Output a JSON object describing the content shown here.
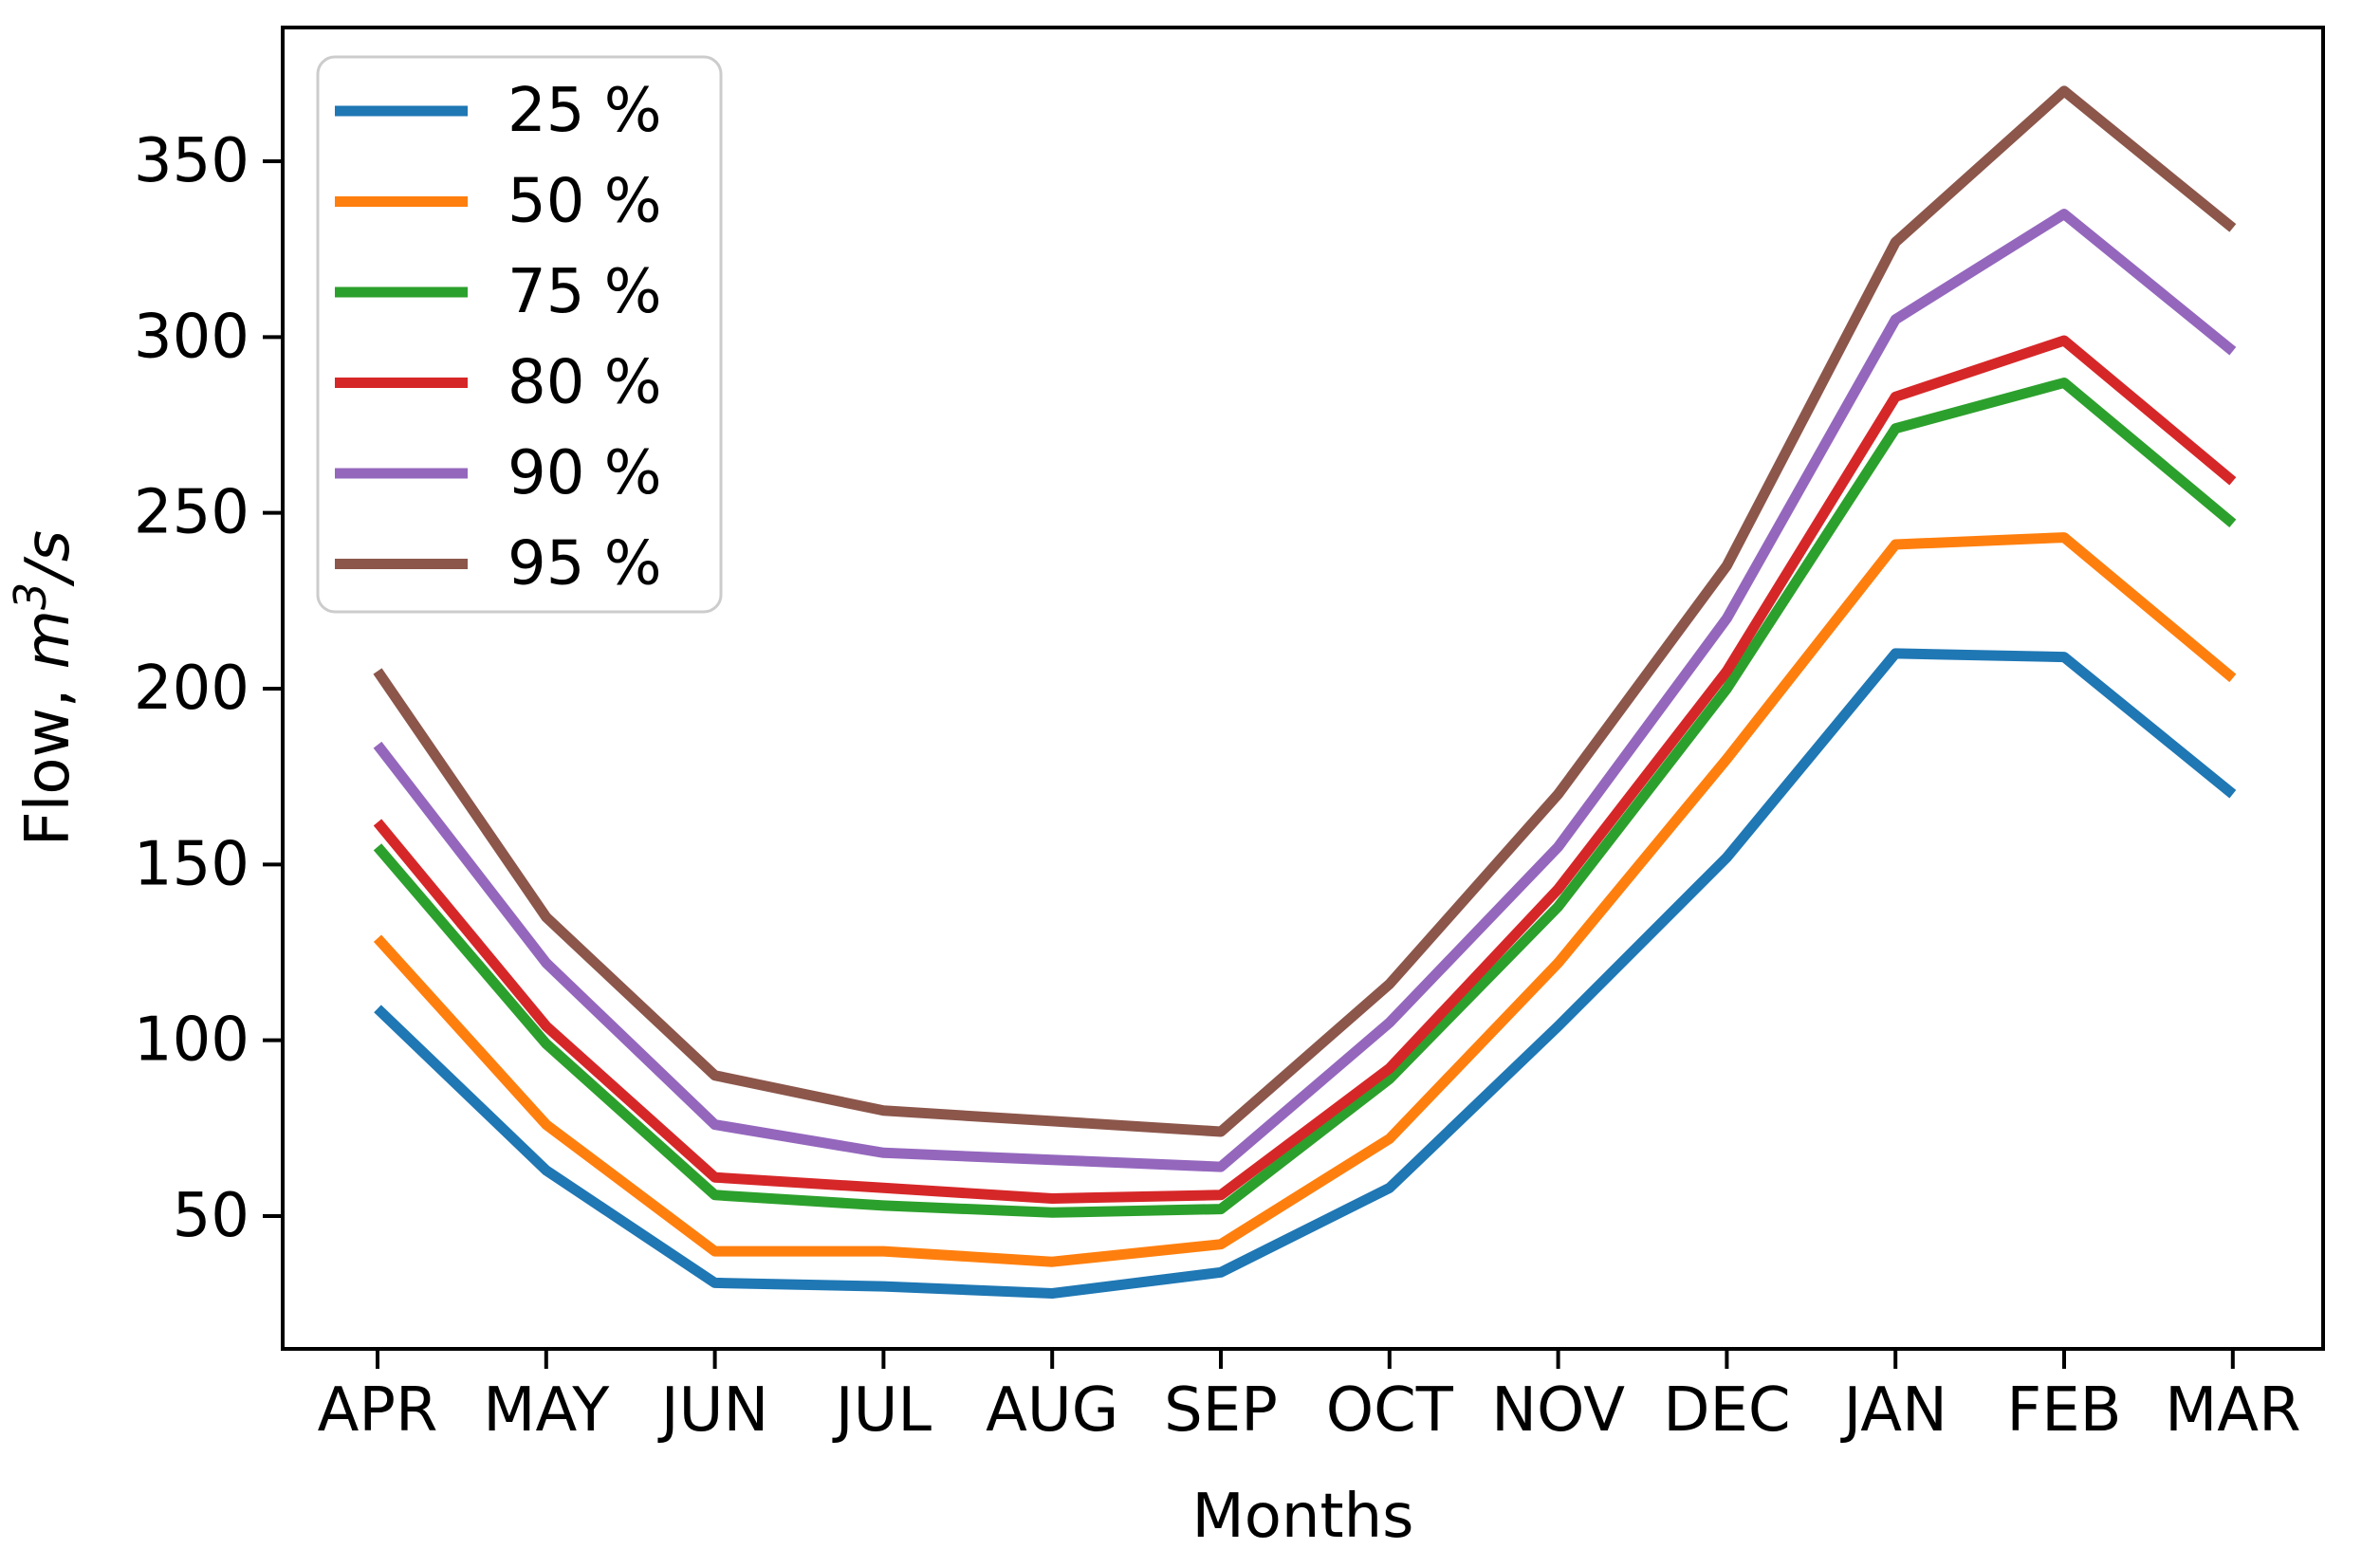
{
  "chart_data": {
    "type": "line",
    "title": "",
    "xlabel": "Months",
    "ylabel": "Flow, m³/s",
    "ylabel_parts": {
      "prefix": "Flow, ",
      "var": "m",
      "sup": "3",
      "unit": "/s"
    },
    "categories": [
      "APR",
      "MAY",
      "JUN",
      "JUL",
      "AUG",
      "SEP",
      "OCT",
      "NOV",
      "DEC",
      "JAN",
      "FEB",
      "MAR"
    ],
    "yticks": [
      50,
      100,
      150,
      200,
      250,
      300,
      350
    ],
    "ylim": [
      11,
      388
    ],
    "grid": false,
    "legend_position": "upper left",
    "series": [
      {
        "name": "25 %",
        "color": "#1f77b4",
        "values": [
          109,
          63,
          31,
          30,
          28,
          34,
          58,
          104,
          152,
          210,
          209,
          170
        ]
      },
      {
        "name": "50 %",
        "color": "#ff7f0e",
        "values": [
          129,
          76,
          40,
          40,
          37,
          42,
          72,
          122,
          180,
          241,
          243,
          203
        ]
      },
      {
        "name": "75 %",
        "color": "#2ca02c",
        "values": [
          155,
          99,
          56,
          53,
          51,
          52,
          89,
          138,
          200,
          274,
          287,
          247
        ]
      },
      {
        "name": "80 %",
        "color": "#d62728",
        "values": [
          162,
          104,
          61,
          58,
          55,
          56,
          92,
          143,
          205,
          283,
          299,
          259
        ]
      },
      {
        "name": "90 %",
        "color": "#9467bd",
        "values": [
          184,
          122,
          76,
          68,
          66,
          64,
          105,
          155,
          220,
          305,
          335,
          296
        ]
      },
      {
        "name": "95 %",
        "color": "#8c564b",
        "values": [
          205,
          135,
          90,
          80,
          77,
          74,
          116,
          170,
          235,
          327,
          370,
          331
        ]
      }
    ]
  },
  "colors": {
    "axis": "#000000",
    "legend_border": "#cccccc",
    "background": "#ffffff"
  }
}
